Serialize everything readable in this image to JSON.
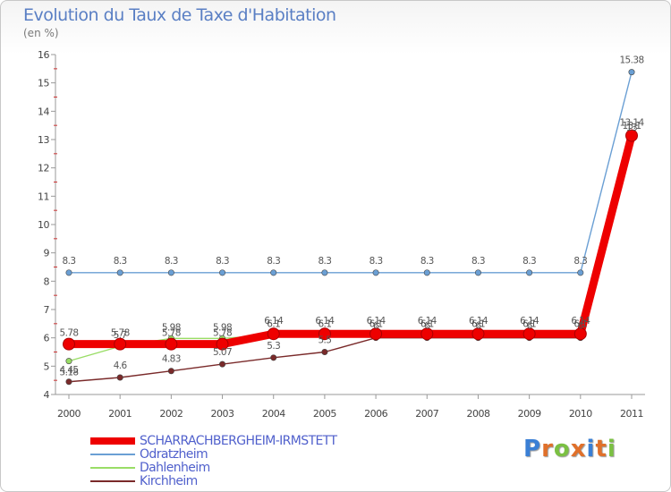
{
  "chart_data": {
    "type": "line",
    "title": "Evolution du Taux de Taxe d'Habitation",
    "subtitle": "(en %)",
    "categories": [
      "2000",
      "2001",
      "2002",
      "2003",
      "2004",
      "2005",
      "2006",
      "2007",
      "2008",
      "2009",
      "2010",
      "2011"
    ],
    "ylim": [
      4,
      16
    ],
    "yticks": [
      4,
      5,
      6,
      7,
      8,
      9,
      10,
      11,
      12,
      13,
      14,
      15,
      16
    ],
    "series": [
      {
        "name": "SCHARRACHBERGHEIM-IRMSTETT",
        "color": "#ee0000",
        "values": [
          5.78,
          5.78,
          5.78,
          5.78,
          6.14,
          6.14,
          6.14,
          6.14,
          6.14,
          6.14,
          6.14,
          13.14
        ],
        "labels": [
          "5.78",
          "5.78",
          "5.78",
          "5.78",
          "6.14",
          "6.14",
          "6.14",
          "6.14",
          "6.14",
          "6.14",
          "6.14",
          "13.14"
        ]
      },
      {
        "name": "Odratzheim",
        "color": "#6a9fd4",
        "values": [
          8.3,
          8.3,
          8.3,
          8.3,
          8.3,
          8.3,
          8.3,
          8.3,
          8.3,
          8.3,
          8.3,
          15.38
        ],
        "labels": [
          "8.3",
          "8.3",
          "8.3",
          "8.3",
          "8.3",
          "8.3",
          "8.3",
          "8.3",
          "8.3",
          "8.3",
          "8.3",
          "15.38"
        ]
      },
      {
        "name": "Dahlenheim",
        "color": "#99dd66",
        "values": [
          5.18,
          5.7,
          5.98,
          5.98,
          6.1,
          6.1,
          6.1,
          6.1,
          6.1,
          6.1,
          6.1,
          13.1
        ],
        "labels": [
          "5.18",
          "5.7",
          "5.98",
          "5.98",
          "6.1",
          "6.1",
          "6.1",
          "6.1",
          "6.1",
          "6.1",
          "6.1",
          "13.1"
        ]
      },
      {
        "name": "Kirchheim",
        "color": "#7a2a2a",
        "values": [
          4.45,
          4.6,
          4.83,
          5.07,
          5.3,
          5.5,
          6.0,
          6.0,
          6.0,
          6.0,
          6.0,
          13.0
        ],
        "labels": [
          "4.45",
          "4.6",
          "4.83",
          "5.07",
          "5.3",
          "5.5",
          "6",
          "6",
          "6",
          "6",
          "6",
          "13"
        ]
      }
    ]
  },
  "logo": {
    "letters": [
      "P",
      "r",
      "o",
      "x",
      "i",
      "t",
      "i"
    ]
  }
}
